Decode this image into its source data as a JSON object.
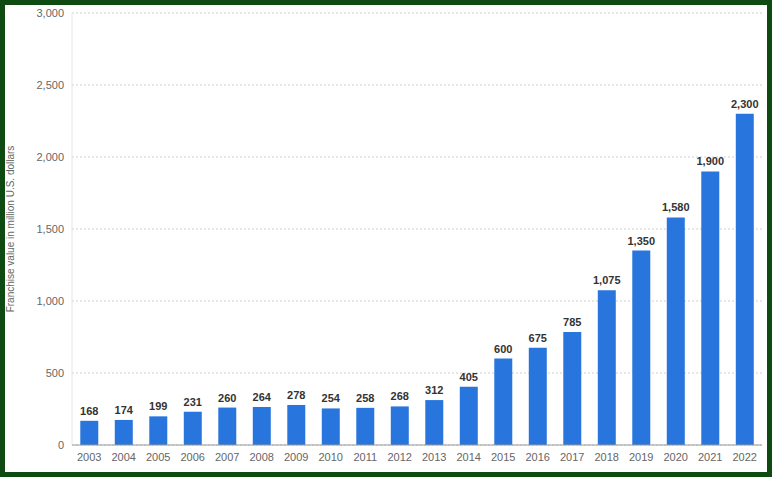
{
  "chart_data": {
    "type": "bar",
    "y_label": "Franchise value in million U.S. dollars",
    "categories": [
      "2003",
      "2004",
      "2005",
      "2006",
      "2007",
      "2008",
      "2009",
      "2010",
      "2011",
      "2012",
      "2013",
      "2014",
      "2015",
      "2016",
      "2017",
      "2018",
      "2019",
      "2020",
      "2021",
      "2022"
    ],
    "values": [
      168,
      174,
      199,
      231,
      260,
      264,
      278,
      254,
      258,
      268,
      312,
      405,
      600,
      675,
      785,
      1075,
      1350,
      1580,
      1900,
      2300
    ],
    "value_labels": [
      "168",
      "174",
      "199",
      "231",
      "260",
      "264",
      "278",
      "254",
      "258",
      "268",
      "312",
      "405",
      "600",
      "675",
      "785",
      "1,075",
      "1,350",
      "1,580",
      "1,900",
      "2,300"
    ],
    "color": "#2876dd",
    "ylim": [
      0,
      3000
    ],
    "yticks": [
      0,
      500,
      {
        "value": 1000,
        "label": "1,000"
      },
      {
        "value": 1500,
        "label": "1,500"
      },
      {
        "value": 2000,
        "label": "2,000"
      },
      {
        "value": 2500,
        "label": "2,500"
      },
      {
        "value": 3000,
        "label": "3,000"
      }
    ],
    "grid": true,
    "data_labels": true
  }
}
